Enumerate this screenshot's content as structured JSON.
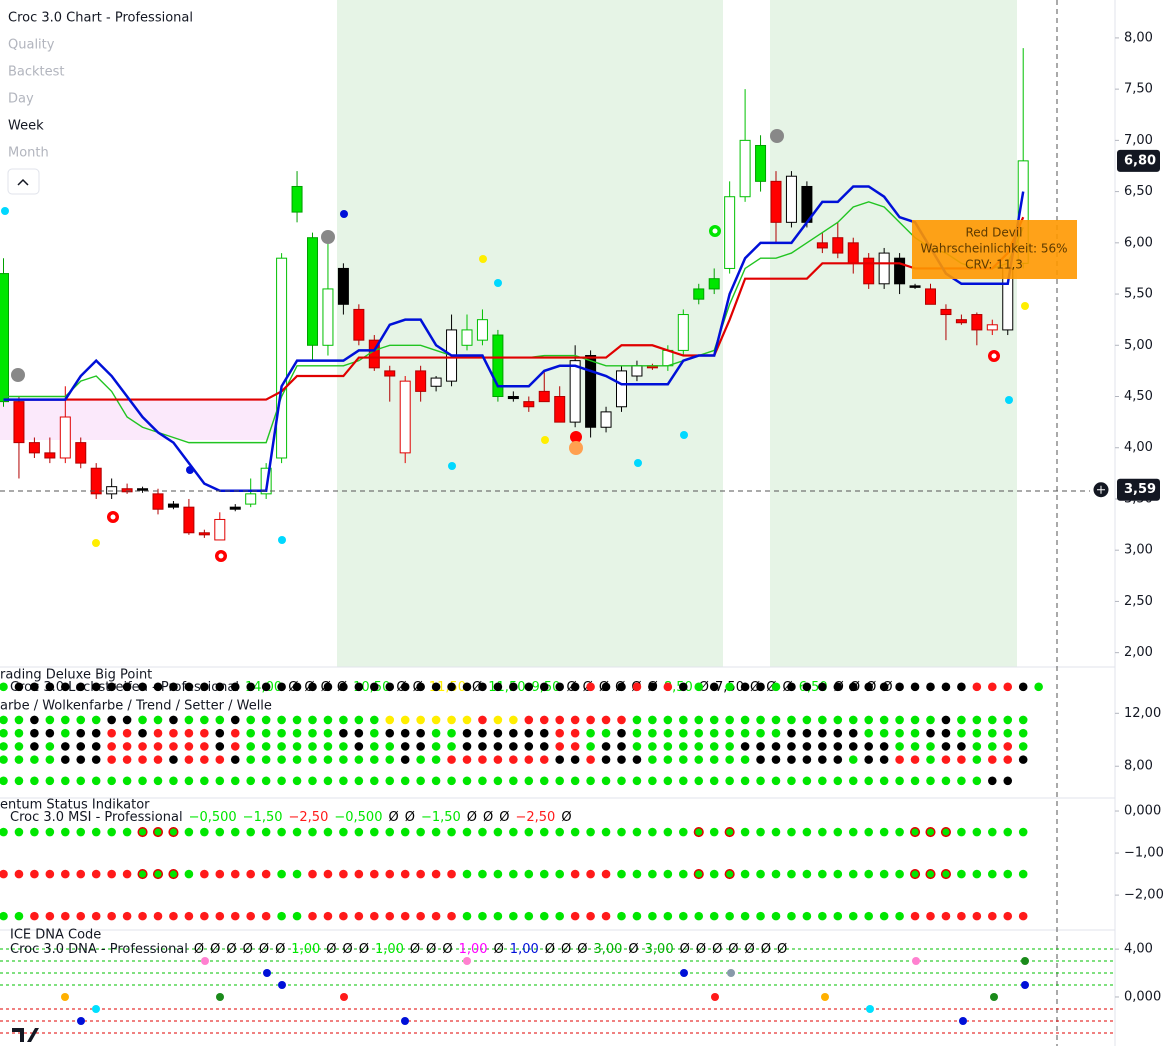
{
  "chart_data": {
    "type": "candlestick",
    "title": "Croc 3.0 Chart - Professional",
    "menu": [
      "Quality",
      "Backtest",
      "Day",
      "Week",
      "Month"
    ],
    "open": [
      4.45,
      4.45,
      4.05,
      3.95,
      3.9,
      4.05,
      3.8,
      3.55,
      3.6,
      3.6,
      3.55,
      3.45,
      3.42,
      3.17,
      3.1,
      3.4,
      3.45,
      3.55,
      3.9,
      6.3,
      5.0,
      5.0,
      5.75,
      5.35,
      5.05,
      4.75,
      3.95,
      4.75,
      4.6,
      4.65,
      5.0,
      5.05,
      5.1,
      4.5,
      4.45,
      4.55,
      4.5,
      4.25,
      4.9,
      4.2,
      4.4,
      4.7,
      4.8,
      4.8,
      4.95,
      5.45,
      5.55,
      5.75,
      6.45,
      6.95,
      6.6,
      6.2,
      6.55,
      6.0,
      6.05,
      6.0,
      5.85,
      5.6,
      5.85,
      5.58,
      5.55,
      5.35,
      5.25,
      5.3,
      5.15,
      5.15,
      5.8
    ],
    "high": [
      5.85,
      4.5,
      4.1,
      4.1,
      4.6,
      4.1,
      3.85,
      3.7,
      3.65,
      3.62,
      3.6,
      3.48,
      3.5,
      3.2,
      3.37,
      3.45,
      3.7,
      3.85,
      5.9,
      6.7,
      6.1,
      6.1,
      5.8,
      5.4,
      5.1,
      4.8,
      4.7,
      4.8,
      4.7,
      5.3,
      5.3,
      5.35,
      5.15,
      4.55,
      4.5,
      4.75,
      4.6,
      5.0,
      4.95,
      4.4,
      4.8,
      4.85,
      4.82,
      5.0,
      5.35,
      5.6,
      5.75,
      6.6,
      7.5,
      7.05,
      6.7,
      6.7,
      6.6,
      6.1,
      6.2,
      6.05,
      5.9,
      5.95,
      5.9,
      5.6,
      5.6,
      5.4,
      5.3,
      5.32,
      5.25,
      5.8,
      7.9
    ],
    "low": [
      4.4,
      3.7,
      3.9,
      3.85,
      3.85,
      3.8,
      3.5,
      3.5,
      3.55,
      3.56,
      3.35,
      3.4,
      3.15,
      3.12,
      3.1,
      3.38,
      3.42,
      3.5,
      3.85,
      6.2,
      4.85,
      4.9,
      5.3,
      5.0,
      4.75,
      4.45,
      3.85,
      4.45,
      4.55,
      4.6,
      4.95,
      5.0,
      4.45,
      4.45,
      4.35,
      4.45,
      4.25,
      4.2,
      4.1,
      4.15,
      4.35,
      4.65,
      4.76,
      4.75,
      4.9,
      5.4,
      5.5,
      5.7,
      6.4,
      6.5,
      6.0,
      6.15,
      6.15,
      5.9,
      5.85,
      5.7,
      5.55,
      5.55,
      5.5,
      5.55,
      5.4,
      5.05,
      5.2,
      5.0,
      5.1,
      5.1,
      5.75
    ],
    "close": [
      5.7,
      4.05,
      3.95,
      3.9,
      4.3,
      3.85,
      3.55,
      3.62,
      3.57,
      3.59,
      3.4,
      3.42,
      3.17,
      3.15,
      3.3,
      3.42,
      3.55,
      3.8,
      5.85,
      6.55,
      6.05,
      5.55,
      5.4,
      5.05,
      4.78,
      4.7,
      4.65,
      4.55,
      4.68,
      5.15,
      5.15,
      5.25,
      4.5,
      4.48,
      4.4,
      4.45,
      4.25,
      4.85,
      4.2,
      4.35,
      4.75,
      4.8,
      4.78,
      4.95,
      5.3,
      5.55,
      5.65,
      6.45,
      7.0,
      6.6,
      6.2,
      6.65,
      6.2,
      5.95,
      5.9,
      5.8,
      5.6,
      5.9,
      5.6,
      5.57,
      5.4,
      5.3,
      5.22,
      5.15,
      5.2,
      5.75,
      6.8
    ],
    "fills": [
      "#00e600",
      "#ff0000",
      "#ff0000",
      "#ff0000",
      "#ffffff",
      "#ff0000",
      "#ff0000",
      "#ffffff",
      "#ff0000",
      "#000000",
      "#ff0000",
      "#000000",
      "#ff0000",
      "#ff0000",
      "#ffffff",
      "#000000",
      "#ffffff",
      "#ffffff",
      "#ffffff",
      "#00e600",
      "#00e600",
      "#ffffff",
      "#000000",
      "#ff0000",
      "#ff0000",
      "#ff0000",
      "#ffffff",
      "#ff0000",
      "#ffffff",
      "#ffffff",
      "#ffffff",
      "#ffffff",
      "#00e600",
      "#000000",
      "#ff0000",
      "#ff0000",
      "#ff0000",
      "#ffffff",
      "#000000",
      "#ffffff",
      "#ffffff",
      "#ffffff",
      "#ff0000",
      "#ffffff",
      "#ffffff",
      "#00e600",
      "#00e600",
      "#ffffff",
      "#ffffff",
      "#00e600",
      "#ff0000",
      "#ffffff",
      "#000000",
      "#ff0000",
      "#ff0000",
      "#ff0000",
      "#ff0000",
      "#ffffff",
      "#000000",
      "#000000",
      "#ff0000",
      "#ff0000",
      "#ff0000",
      "#ff0000",
      "#ffffff",
      "#ffffff",
      "#ffffff"
    ],
    "borders": [
      "#00a000",
      "#b00000",
      "#b00000",
      "#b00000",
      "#e00000",
      "#b00000",
      "#b00000",
      "#000000",
      "#b00000",
      "#000000",
      "#b00000",
      "#000000",
      "#b00000",
      "#b00000",
      "#e00000",
      "#000000",
      "#00c000",
      "#00c000",
      "#00c000",
      "#00a000",
      "#00a000",
      "#00c000",
      "#000000",
      "#b00000",
      "#b00000",
      "#b00000",
      "#e00000",
      "#b00000",
      "#000000",
      "#000000",
      "#00c000",
      "#00c000",
      "#00a000",
      "#000000",
      "#b00000",
      "#b00000",
      "#b00000",
      "#000000",
      "#000000",
      "#000000",
      "#000000",
      "#000000",
      "#b00000",
      "#00c000",
      "#00c000",
      "#00a000",
      "#00a000",
      "#00c000",
      "#00c000",
      "#00a000",
      "#b00000",
      "#000000",
      "#000000",
      "#b00000",
      "#b00000",
      "#b00000",
      "#b00000",
      "#000000",
      "#000000",
      "#000000",
      "#b00000",
      "#b00000",
      "#b00000",
      "#b00000",
      "#e00000",
      "#000000",
      "#00c000"
    ],
    "series": [
      {
        "color": "#21c421",
        "values": [
          4.5,
          4.5,
          4.5,
          4.5,
          4.5,
          4.65,
          4.7,
          4.55,
          4.3,
          4.2,
          4.15,
          4.1,
          4.05,
          4.05,
          4.05,
          4.05,
          4.05,
          4.05,
          4.5,
          4.8,
          4.8,
          4.8,
          4.8,
          4.85,
          4.95,
          5.0,
          5.0,
          5.0,
          4.95,
          4.9,
          4.9,
          4.88,
          4.88,
          4.88,
          4.88,
          4.9,
          4.9,
          4.9,
          4.85,
          4.8,
          4.8,
          4.8,
          4.8,
          4.8,
          4.85,
          4.9,
          4.95,
          5.4,
          5.75,
          5.85,
          5.85,
          5.9,
          6.0,
          6.1,
          6.2,
          6.35,
          6.4,
          6.35,
          6.2,
          6.05,
          5.95,
          5.9,
          5.8,
          5.75,
          5.75,
          5.8,
          6.15
        ]
      },
      {
        "color": "#e00000",
        "values": [
          4.47,
          4.47,
          4.47,
          4.47,
          4.47,
          4.47,
          4.47,
          4.47,
          4.47,
          4.47,
          4.47,
          4.47,
          4.47,
          4.47,
          4.47,
          4.47,
          4.47,
          4.47,
          4.55,
          4.7,
          4.7,
          4.7,
          4.7,
          4.88,
          4.88,
          4.88,
          4.88,
          4.88,
          4.88,
          4.88,
          4.88,
          4.88,
          4.88,
          4.88,
          4.88,
          4.88,
          4.88,
          4.88,
          4.88,
          4.88,
          5.0,
          5.0,
          5.0,
          4.95,
          4.9,
          4.9,
          4.9,
          5.25,
          5.65,
          5.65,
          5.65,
          5.65,
          5.65,
          5.8,
          5.8,
          5.8,
          5.8,
          5.8,
          5.8,
          5.75,
          5.75,
          5.75,
          5.75,
          5.75,
          5.75,
          5.9,
          6.25
        ]
      },
      {
        "color": "#0010d8",
        "values": [
          4.47,
          4.47,
          4.47,
          4.47,
          4.47,
          4.7,
          4.85,
          4.7,
          4.5,
          4.3,
          4.15,
          4.05,
          3.85,
          3.65,
          3.58,
          3.58,
          3.58,
          3.58,
          4.6,
          4.85,
          4.85,
          4.85,
          4.85,
          4.95,
          4.95,
          5.2,
          5.25,
          5.25,
          5.0,
          4.9,
          4.9,
          4.9,
          4.6,
          4.6,
          4.6,
          4.75,
          4.8,
          4.8,
          4.75,
          4.7,
          4.62,
          4.62,
          4.62,
          4.62,
          4.85,
          4.9,
          4.9,
          5.5,
          5.85,
          6.0,
          6.0,
          6.0,
          6.2,
          6.4,
          6.4,
          6.55,
          6.55,
          6.45,
          6.25,
          6.2,
          5.95,
          5.7,
          5.6,
          5.6,
          5.6,
          5.6,
          6.5
        ]
      }
    ],
    "ylim": [
      1.86,
      8.37
    ],
    "yticks": [
      {
        "value": 8,
        "label": "8,00"
      },
      {
        "value": 7.5,
        "label": "7,50"
      },
      {
        "value": 7,
        "label": "7,00"
      },
      {
        "value": 6.5,
        "label": "6,50"
      },
      {
        "value": 6,
        "label": "6,00"
      },
      {
        "value": 5.5,
        "label": "5,50"
      },
      {
        "value": 5,
        "label": "5,00"
      },
      {
        "value": 4.5,
        "label": "4,50"
      },
      {
        "value": 4,
        "label": "4,00"
      },
      {
        "value": 3.5,
        "label": "3,50"
      },
      {
        "value": 3,
        "label": "3,00"
      },
      {
        "value": 2.5,
        "label": "2,50"
      },
      {
        "value": 2,
        "label": "2,00"
      }
    ],
    "last_price": {
      "value": 6.8,
      "label": "6,80"
    },
    "crosshair": {
      "value": 3.59,
      "label": "3,59"
    },
    "annotation": [
      "Red Devil",
      "Wahrscheinlichkeit: 56%",
      "CRV: 11,3"
    ]
  },
  "dot_colors": {
    "G": "#00e600",
    "K": "#000000",
    "R": "#ff1a1a",
    "Y": "#ffee00",
    "O": "#00e600"
  },
  "panes": [
    {
      "title": "rading Deluxe Big Point",
      "name": "Croc 3.0 Lochstreifen - Professional",
      "legend": [
        "14,00",
        "Ø",
        "Ø",
        "Ø",
        "Ø",
        "10,50",
        "Ø",
        "Ø",
        "11,50",
        "Ø",
        "11,50",
        "9,50",
        "Ø",
        "Ø",
        "Ø",
        "Ø",
        "Ø",
        "Ø",
        "8,50",
        "Ø",
        "7,50",
        "Ø",
        "Ø",
        "Ø",
        "6,50",
        "Ø",
        "Ø",
        "Ø",
        "Ø"
      ],
      "legend_colors": [
        "#00e600",
        "#000",
        "#000",
        "#000",
        "#000",
        "#00e600",
        "#000",
        "#000",
        "#ffee00",
        "#000",
        "#00e600",
        "#00e600",
        "#000",
        "#000",
        "#000",
        "#000",
        "#000",
        "#000",
        "#00e600",
        "#000",
        "#000",
        "#000",
        "#000",
        "#000",
        "#00e600",
        "#000",
        "#000",
        "#000",
        "#000"
      ],
      "subtitle": "arbe / Wolkenfarbe / Trend / Setter / Welle",
      "ylim": [
        5.6,
        15.5
      ],
      "yticks": [
        {
          "value": 12,
          "label": "12,00"
        },
        {
          "value": 8,
          "label": "8,00"
        }
      ],
      "rows": [
        {
          "y": 14,
          "dots": "GKKKKKKKKKKKKKKKKKKKKKKKKKKKKKKKKKKKKKRKKRKRKGKGKKGKKKKKKKKKKKKRRRKG"
        },
        {
          "y": 11.5,
          "dots": "GGKGGGGKKGGKGGGKGGGGGGGGGYYYYYYRYYRRRRRRRGGGGGGGGGGGGGGGGGGGGKGGGGG"
        },
        {
          "y": 10.5,
          "dots": "GGKKGKKRRKRRRRKRGGGGGGKKGKKKGGKKKKKKRRGGKGGGGGGGGGGKKKKKGGGGKKGGGGG"
        },
        {
          "y": 9.5,
          "dots": "GGKGKKKRRRRRRRKRGGGGGGGKGGKKGGKKKKKKRRGKKGGGGGGGKKKKKKKKKKGGGKKGGRG"
        },
        {
          "y": 8.5,
          "dots": "GGGGKKKRRRRKRRRKGGGGGGGGGGKGGRRRRRRRKKRKKKGGGGGGGKKKKKKGKKRRGRRGRRK"
        },
        {
          "y": 6.9,
          "dots": "GGGGGGGGGGGGGGGGGGGGGGGGGGGGGGGGGGGGGGGGGGGGGGGGGGGGGGGGGGGGGGGGKK"
        }
      ]
    },
    {
      "title": "entum Status Indikator",
      "name": "Croc 3.0 MSI - Professional",
      "legend": [
        "−0,500",
        "−1,50",
        "−2,50",
        "−0,500",
        "Ø",
        "Ø",
        "−1,50",
        "Ø",
        "Ø",
        "Ø",
        "−2,50",
        "Ø"
      ],
      "legend_colors": [
        "#00e600",
        "#00e600",
        "#ff1a1a",
        "#00e600",
        "#000",
        "#000",
        "#00e600",
        "#000",
        "#000",
        "#000",
        "#ff1a1a",
        "#000"
      ],
      "ylim": [
        -2.83,
        0.31
      ],
      "yticks": [
        {
          "value": 0,
          "label": "0,000"
        },
        {
          "value": -1,
          "label": "−1,00"
        },
        {
          "value": -2,
          "label": "−2,00"
        }
      ],
      "rows": [
        {
          "y": -0.5,
          "dots": "GGGGGGGGGOOOGGGGGGGGGGGGGGGGGGGGGGGGGGGGGGGGGOGOGGGGGGGGGGGOOOGGGGG"
        },
        {
          "y": -1.5,
          "dots": "RRRRRRRRROOOGRRRRRGGRRRRRRRRRRGGGGGGGRRRGGGGGOGOGGGGGGGGGGGOOOGGGGG"
        },
        {
          "y": -2.5,
          "dots": "GGRRRRRRRRRRRRRRRRGGRRRRRRRRRRGGGGGGGRRRGGGGGGGGGGGGGGGGGGGRRRRRRRR"
        }
      ]
    },
    {
      "title": "ICE DNA Code",
      "name": "Croc 3.0 DNA - Professional",
      "legend": [
        "Ø",
        "Ø",
        "Ø",
        "Ø",
        "Ø",
        "Ø",
        "1,00",
        "Ø",
        "Ø",
        "Ø",
        "1,00",
        "Ø",
        "Ø",
        "Ø",
        "1,00",
        "Ø",
        "1,00",
        "Ø",
        "Ø",
        "Ø",
        "3,00",
        "Ø",
        "3,00",
        "Ø",
        "Ø",
        "Ø",
        "Ø",
        "Ø",
        "Ø",
        "Ø"
      ],
      "legend_colors": [
        "#000",
        "#000",
        "#000",
        "#000",
        "#000",
        "#000",
        "#00e600",
        "#000",
        "#000",
        "#000",
        "#00e600",
        "#000",
        "#000",
        "#000",
        "#ff00ff",
        "#000",
        "#0010d8",
        "#000",
        "#000",
        "#000",
        "#00b000",
        "#000",
        "#00b000",
        "#000",
        "#000",
        "#000",
        "#000",
        "#000",
        "#000",
        "#000"
      ],
      "ylim": [
        -4.1,
        5.6
      ],
      "yticks": [
        {
          "value": 4,
          "label": "4,00"
        },
        {
          "value": 0,
          "label": "0,000"
        }
      ],
      "rows": []
    }
  ]
}
